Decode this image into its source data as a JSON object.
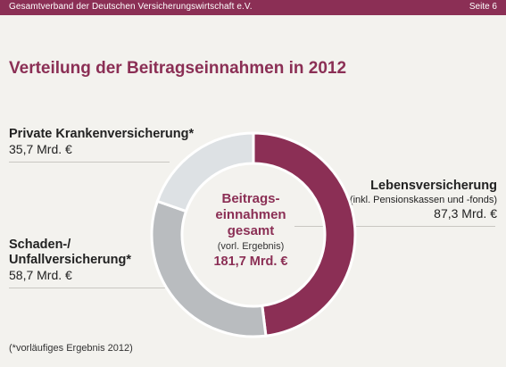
{
  "header": {
    "org_name": "Gesamtverband der Deutschen Versicherungswirtschaft e.V.",
    "page_label": "Seite 6"
  },
  "colors": {
    "brand": "#8b2f55",
    "segment_leben": "#8b2f55",
    "segment_schaden": "#b9bcbf",
    "segment_private": "#dde1e4"
  },
  "chart_data": {
    "type": "pie",
    "title": "Verteilung der Beitragseinnahmen in 2012",
    "center_label": [
      "Beitrags-",
      "einnahmen",
      "gesamt"
    ],
    "center_note": "(vorl. Ergebnis)",
    "center_total": "181,7 Mrd. €",
    "total": 181.7,
    "unit": "Mrd. €",
    "slices": [
      {
        "name": "Lebensversicherung",
        "note": "(inkl. Pensionskassen und -fonds)",
        "value": 87.3,
        "value_label": "87,3 Mrd. €",
        "color": "#8b2f55"
      },
      {
        "name_lines": [
          "Schaden-/",
          "Unfallversicherung*"
        ],
        "value": 58.7,
        "value_label": "58,7 Mrd. €",
        "color": "#b9bcbf"
      },
      {
        "name": "Private Krankenversicherung*",
        "value": 35.7,
        "value_label": "35,7 Mrd. €",
        "color": "#dde1e4"
      }
    ]
  },
  "footnote": "(*vorläufiges Ergebnis 2012)"
}
